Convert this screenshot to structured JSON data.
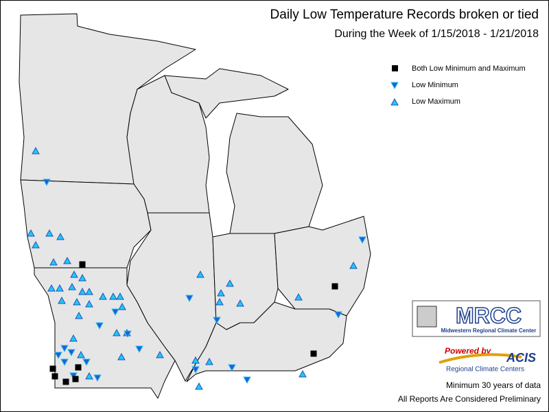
{
  "header": {
    "title": "Daily Low Temperature Records broken or tied",
    "subtitle": "During the Week of 1/15/2018 - 1/21/2018"
  },
  "legend": [
    {
      "label": "Both Low Minimum and Maximum"
    },
    {
      "label": "Low Minimum"
    },
    {
      "label": "Low Maximum"
    }
  ],
  "logos": {
    "mrcc": "MRCC",
    "mrcc_name": "Midwestern Regional Climate Center",
    "powered": "Powered by",
    "acis": "ACIS",
    "rcc": "Regional Climate Centers"
  },
  "footer": {
    "note1": "Minimum 30 years of data",
    "note2": "All Reports Are Considered Preliminary"
  }
}
